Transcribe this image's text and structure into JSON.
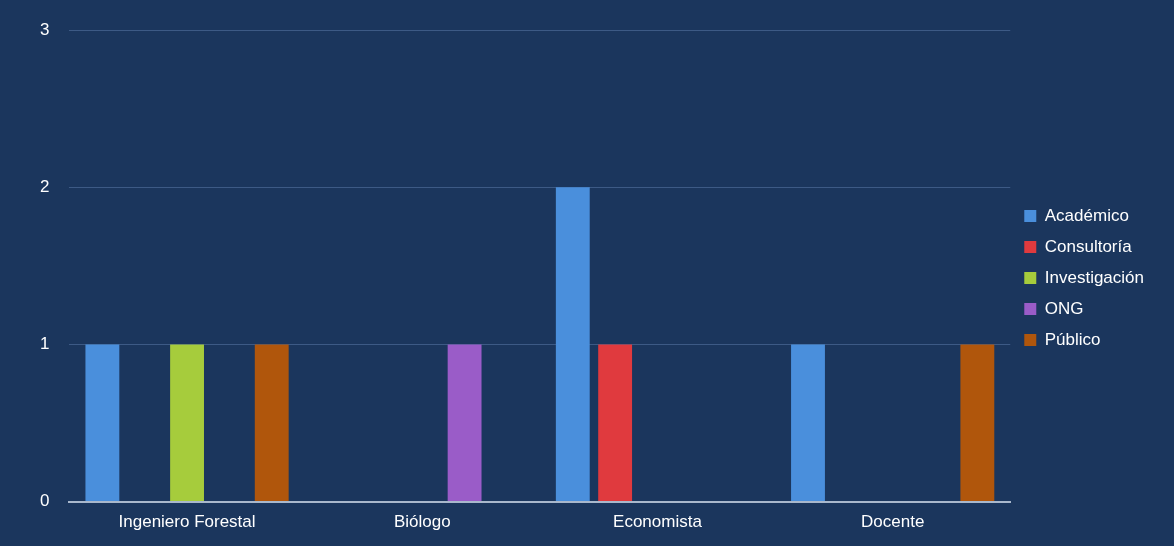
{
  "chart_data": {
    "type": "bar",
    "categories": [
      "Ingeniero Forestal",
      "Biólogo",
      "Economista",
      "Docente"
    ],
    "series": [
      {
        "name": "Académico",
        "color": "#4a8fdc",
        "values": [
          1,
          0,
          2,
          1
        ]
      },
      {
        "name": "Consultoría",
        "color": "#e03a3e",
        "values": [
          0,
          0,
          1,
          0
        ]
      },
      {
        "name": "Investigación",
        "color": "#a6cc3c",
        "values": [
          1,
          0,
          0,
          0
        ]
      },
      {
        "name": "ONG",
        "color": "#9a5cc8",
        "values": [
          0,
          1,
          0,
          0
        ]
      },
      {
        "name": "Público",
        "color": "#b0560c",
        "values": [
          1,
          0,
          0,
          1
        ]
      }
    ],
    "ylim": [
      0,
      3
    ],
    "yticks": [
      0,
      1,
      2,
      3
    ],
    "grid": "y",
    "legend": "right"
  }
}
